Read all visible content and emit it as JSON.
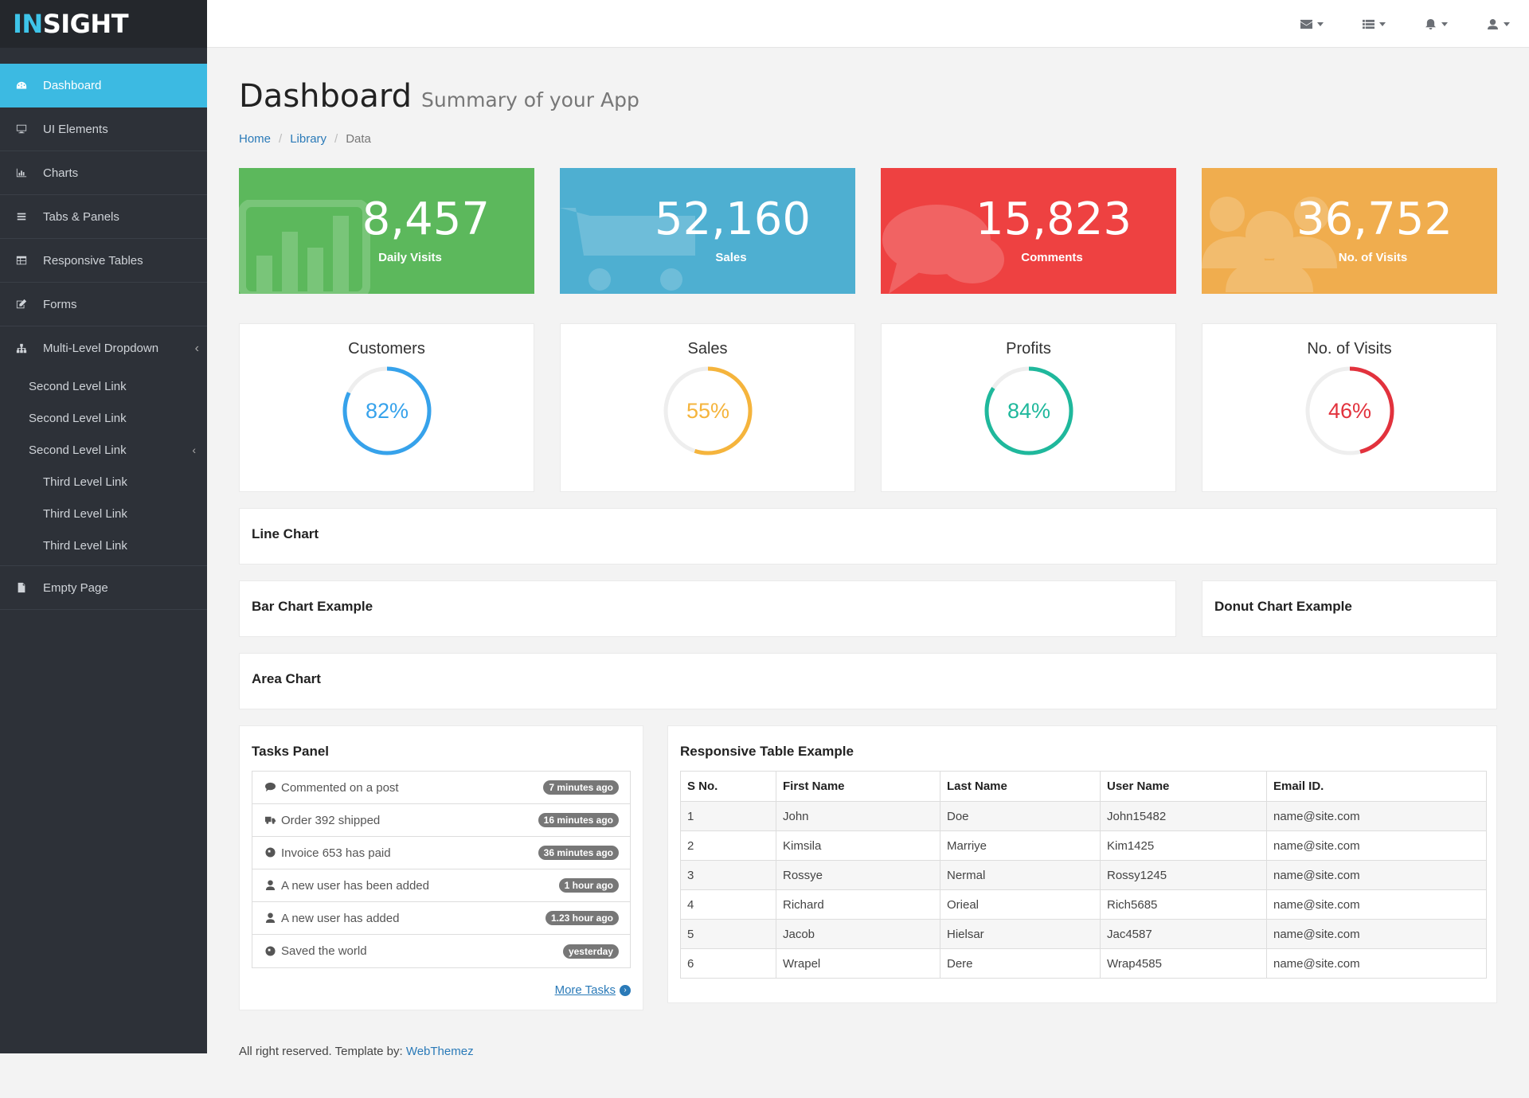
{
  "brand": {
    "prefix": "IN",
    "suffix": "SIGHT"
  },
  "sidebar": {
    "items": [
      {
        "label": "Dashboard",
        "icon": "dashboard-icon"
      },
      {
        "label": "UI Elements",
        "icon": "desktop-icon"
      },
      {
        "label": "Charts",
        "icon": "bar-chart-icon"
      },
      {
        "label": "Tabs & Panels",
        "icon": "list-icon"
      },
      {
        "label": "Responsive Tables",
        "icon": "table-icon"
      },
      {
        "label": "Forms",
        "icon": "edit-icon"
      },
      {
        "label": "Multi-Level Dropdown",
        "icon": "sitemap-icon"
      }
    ],
    "second_level": [
      "Second Level Link",
      "Second Level Link",
      "Second Level Link"
    ],
    "third_level": [
      "Third Level Link",
      "Third Level Link",
      "Third Level Link"
    ],
    "empty_page": "Empty Page"
  },
  "topbar": {
    "icons": [
      "envelope-icon",
      "tasks-icon",
      "bell-icon",
      "user-icon"
    ]
  },
  "page": {
    "title": "Dashboard",
    "subtitle": "Summary of your App"
  },
  "breadcrumb": {
    "home": "Home",
    "library": "Library",
    "current": "Data"
  },
  "stats": [
    {
      "value": "8,457",
      "label": "Daily Visits",
      "color": "#5cb85c"
    },
    {
      "value": "52,160",
      "label": "Sales",
      "color": "#4eafd1"
    },
    {
      "value": "15,823",
      "label": "Comments",
      "color": "#ee4141"
    },
    {
      "value": "36,752",
      "label": "No. of Visits",
      "color": "#f0ad4e"
    }
  ],
  "gauges": [
    {
      "title": "Customers",
      "percent": 82,
      "text": "82%",
      "color": "#36a2eb"
    },
    {
      "title": "Sales",
      "percent": 55,
      "text": "55%",
      "color": "#f5b43c"
    },
    {
      "title": "Profits",
      "percent": 84,
      "text": "84%",
      "color": "#1fb89c"
    },
    {
      "title": "No. of Visits",
      "percent": 46,
      "text": "46%",
      "color": "#e2323d"
    }
  ],
  "panels": {
    "line_chart": "Line Chart",
    "bar_chart": "Bar Chart Example",
    "donut_chart": "Donut Chart Example",
    "area_chart": "Area Chart",
    "tasks": "Tasks Panel",
    "table": "Responsive Table Example"
  },
  "tasks": [
    {
      "text": "Commented on a post",
      "time": "7 minutes ago",
      "icon": "comment-icon"
    },
    {
      "text": "Order 392 shipped",
      "time": "16 minutes ago",
      "icon": "truck-icon"
    },
    {
      "text": "Invoice 653 has paid",
      "time": "36 minutes ago",
      "icon": "globe-icon"
    },
    {
      "text": "A new user has been added",
      "time": "1 hour ago",
      "icon": "user-icon"
    },
    {
      "text": "A new user has added",
      "time": "1.23 hour ago",
      "icon": "user-icon"
    },
    {
      "text": "Saved the world",
      "time": "yesterday",
      "icon": "globe-icon"
    }
  ],
  "more_tasks": "More Tasks",
  "table": {
    "headers": [
      "S No.",
      "First Name",
      "Last Name",
      "User Name",
      "Email ID."
    ],
    "rows": [
      [
        "1",
        "John",
        "Doe",
        "John15482",
        "name@site.com"
      ],
      [
        "2",
        "Kimsila",
        "Marriye",
        "Kim1425",
        "name@site.com"
      ],
      [
        "3",
        "Rossye",
        "Nermal",
        "Rossy1245",
        "name@site.com"
      ],
      [
        "4",
        "Richard",
        "Orieal",
        "Rich5685",
        "name@site.com"
      ],
      [
        "5",
        "Jacob",
        "Hielsar",
        "Jac4587",
        "name@site.com"
      ],
      [
        "6",
        "Wrapel",
        "Dere",
        "Wrap4585",
        "name@site.com"
      ]
    ]
  },
  "footer": {
    "text": "All right reserved. Template by: ",
    "link": "WebThemez"
  }
}
